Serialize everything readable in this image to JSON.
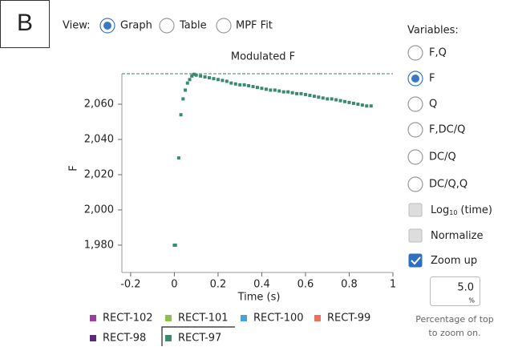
{
  "panel_label": "B",
  "view": {
    "label": "View:",
    "options": [
      {
        "label": "Graph",
        "selected": true
      },
      {
        "label": "Table",
        "selected": false
      },
      {
        "label": "MPF Fit",
        "selected": false
      }
    ]
  },
  "chart_data": {
    "type": "scatter",
    "title": "Modulated F",
    "xlabel": "Time (s)",
    "ylabel": "F",
    "color": "#3a8a6e",
    "x": [
      0,
      0.005,
      0.02,
      0.03,
      0.04,
      0.05,
      0.06,
      0.07,
      0.08,
      0.09,
      0.1,
      0.12,
      0.14,
      0.16,
      0.18,
      0.2,
      0.22,
      0.24,
      0.26,
      0.28,
      0.3,
      0.32,
      0.34,
      0.36,
      0.38,
      0.4,
      0.42,
      0.44,
      0.46,
      0.48,
      0.5,
      0.52,
      0.54,
      0.56,
      0.58,
      0.6,
      0.62,
      0.64,
      0.66,
      0.68,
      0.7,
      0.72,
      0.74,
      0.76,
      0.78,
      0.8,
      0.82,
      0.84,
      0.86,
      0.88,
      0.9
    ],
    "values": [
      1980,
      1980,
      2029.5,
      2054,
      2063,
      2068,
      2072,
      2074,
      2076,
      2077,
      2076.5,
      2076,
      2075.5,
      2075,
      2074.5,
      2074,
      2073.5,
      2073,
      2072,
      2071.5,
      2071,
      2071,
      2070.5,
      2070,
      2069.5,
      2069,
      2068.5,
      2068,
      2068,
      2067.5,
      2067,
      2067,
      2066.5,
      2066,
      2066,
      2065.5,
      2065,
      2064.5,
      2064,
      2063.5,
      2063,
      2063,
      2062.5,
      2062,
      2061.5,
      2061,
      2060.5,
      2060,
      2059.5,
      2059,
      2059
    ],
    "xlim": [
      -0.24,
      1.0
    ],
    "xticks": [
      -0.2,
      0,
      0.2,
      0.4,
      0.6,
      0.8,
      1
    ],
    "ylim": [
      1964.5,
      2077.3
    ],
    "yticks": [
      {
        "value": 1980,
        "label": "1,980"
      },
      {
        "value": 2000,
        "label": "2,000"
      },
      {
        "value": 2020,
        "label": "2,020"
      },
      {
        "value": 2040,
        "label": "2,040"
      },
      {
        "value": 2060,
        "label": "2,060"
      }
    ],
    "legend": [
      {
        "name": "RECT-102",
        "color": "#9c3f9a"
      },
      {
        "name": "RECT-101",
        "color": "#8bc34a"
      },
      {
        "name": "RECT-100",
        "color": "#4aa3d1"
      },
      {
        "name": "RECT-99",
        "color": "#e8735a"
      },
      {
        "name": "RECT-98",
        "color": "#5b2a7c"
      },
      {
        "name": "RECT-97",
        "color": "#3a8a6e"
      }
    ]
  },
  "variables": {
    "label": "Variables:",
    "options": [
      {
        "label": "F,Q",
        "selected": false
      },
      {
        "label": "F",
        "selected": true
      },
      {
        "label": "Q",
        "selected": false
      },
      {
        "label": "F,DC/Q",
        "selected": false
      },
      {
        "label": "DC/Q",
        "selected": false
      },
      {
        "label": "DC/Q,Q",
        "selected": false
      }
    ]
  },
  "checkboxes": [
    {
      "label": "Log",
      "subscript": "10",
      "suffix": "(time)",
      "checked": false
    },
    {
      "label": "Normalize",
      "checked": false
    },
    {
      "label": "Zoom up",
      "checked": true
    }
  ],
  "zoom": {
    "value": "5.0",
    "unit": "%",
    "caption": [
      "Percentage of top",
      "to zoom on."
    ]
  }
}
